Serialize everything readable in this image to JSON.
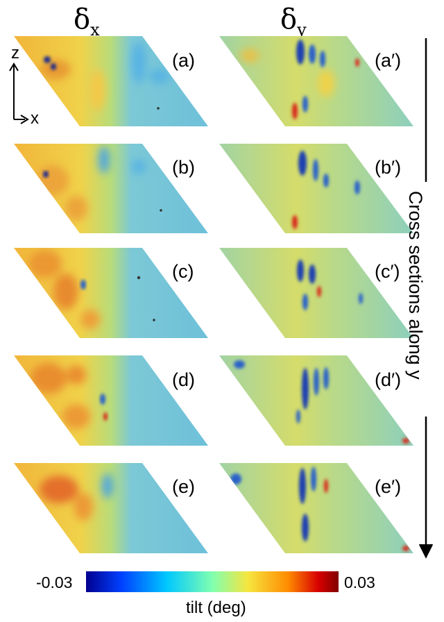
{
  "column_titles": {
    "left": {
      "symbol": "δ",
      "subscript": "x"
    },
    "right": {
      "symbol": "δ",
      "subscript": "y"
    }
  },
  "axes": {
    "vertical": "z",
    "horizontal": "x"
  },
  "panel_labels": {
    "left": [
      "(a)",
      "(b)",
      "(c)",
      "(d)",
      "(e)"
    ],
    "right": [
      "(a′)",
      "(b′)",
      "(c′)",
      "(d′)",
      "(e′)"
    ]
  },
  "side_caption": "Cross sections along y",
  "colorbar": {
    "min_label": "-0.03",
    "max_label": "0.03",
    "title": "tilt (deg)",
    "min": -0.03,
    "max": 0.03,
    "colormap": [
      "#00008f",
      "#0040ff",
      "#00c8ff",
      "#80ffb0",
      "#f5e640",
      "#ff8c00",
      "#d80000",
      "#800000"
    ]
  },
  "colors": {
    "background": "#6ec1d8",
    "warm": "#f2c23c",
    "hot": "#e8742a",
    "cold": "#2a62c9",
    "deep": "#1a2a8f"
  }
}
